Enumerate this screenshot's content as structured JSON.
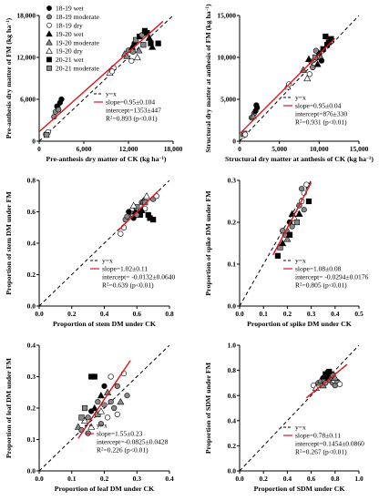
{
  "legend": [
    {
      "label": "18-19 wet",
      "marker": "circle",
      "fill": "#000000"
    },
    {
      "label": "18-19 moderate",
      "marker": "circle",
      "fill": "#888888"
    },
    {
      "label": "18-19 dry",
      "marker": "circle",
      "fill": "#ffffff"
    },
    {
      "label": "19-20 wet",
      "marker": "triangle",
      "fill": "#000000"
    },
    {
      "label": "19-20 moderate",
      "marker": "triangle",
      "fill": "#888888"
    },
    {
      "label": "19-20 dry",
      "marker": "triangle",
      "fill": "#ffffff"
    },
    {
      "label": "20-21 wet",
      "marker": "square",
      "fill": "#000000"
    },
    {
      "label": "20-21 moderate",
      "marker": "square",
      "fill": "#888888"
    }
  ],
  "colors": {
    "fit_line": "#e0141e",
    "one_to_one": "#000000",
    "axis": "#000000"
  },
  "chart_data": [
    {
      "type": "scatter",
      "xlabel": "Pre-anthesis dry matter of CK (kg ha",
      "ylabel": "Pre-anthesis dry matter of FM (kg ha",
      "xlim": [
        0,
        18000
      ],
      "ylim": [
        0,
        18000
      ],
      "xticks": [
        0,
        6000,
        12000,
        18000
      ],
      "xtick_labels": [
        "0",
        "6,000",
        "12,000",
        "18,000"
      ],
      "yticks": [
        0,
        6000,
        12000,
        18000
      ],
      "ytick_labels": [
        "0",
        "6,000",
        "12,000",
        "18,000"
      ],
      "fit": {
        "slope": 0.95,
        "intercept": 1353
      },
      "stats": {
        "one_to_one_label": "y=x",
        "slope": "slope=0.95±0.104",
        "intercept": "intercept=1353±447",
        "r2_prefix": "R",
        "r2_sup": "2",
        "r2_rest": "=0.893 (p<0.01)"
      },
      "points": [
        [
          900,
          1000,
          "18-19 dry"
        ],
        [
          1200,
          1300,
          "18-19 dry"
        ],
        [
          1000,
          900,
          "20-21 moderate"
        ],
        [
          2000,
          3500,
          "18-19 moderate"
        ],
        [
          2200,
          4200,
          "18-19 moderate"
        ],
        [
          2500,
          4800,
          "18-19 moderate"
        ],
        [
          2400,
          5000,
          "18-19 wet"
        ],
        [
          2800,
          5500,
          "18-19 wet"
        ],
        [
          3000,
          6000,
          "18-19 wet"
        ],
        [
          2600,
          4500,
          "18-19 moderate"
        ],
        [
          9500,
          9800,
          "19-20 dry"
        ],
        [
          10000,
          10500,
          "18-19 dry"
        ],
        [
          9800,
          10000,
          "18-19 dry"
        ],
        [
          11500,
          12500,
          "19-20 moderate"
        ],
        [
          12000,
          13000,
          "18-19 moderate"
        ],
        [
          12500,
          13500,
          "19-20 wet"
        ],
        [
          12800,
          14000,
          "18-19 wet"
        ],
        [
          13000,
          14500,
          "20-21 moderate"
        ],
        [
          13500,
          15000,
          "20-21 wet"
        ],
        [
          13200,
          12000,
          "19-20 dry"
        ],
        [
          12400,
          11500,
          "18-19 dry"
        ],
        [
          14000,
          13800,
          "20-21 moderate"
        ],
        [
          14500,
          15500,
          "20-21 wet"
        ],
        [
          15000,
          14000,
          "20-21 wet"
        ],
        [
          15200,
          13500,
          "19-20 wet"
        ],
        [
          13800,
          15200,
          "18-19 moderate"
        ],
        [
          14200,
          15800,
          "20-21 wet"
        ],
        [
          11800,
          12200,
          "19-20 moderate"
        ],
        [
          12600,
          12800,
          "18-19 moderate"
        ],
        [
          13400,
          13000,
          "19-20 moderate"
        ],
        [
          16000,
          14000,
          "20-21 wet"
        ],
        [
          14800,
          14800,
          "19-20 wet"
        ]
      ]
    },
    {
      "type": "scatter",
      "xlabel": "Structural dry matter at anthesis of CK (kg ha",
      "ylabel": "Structural dry matter at anthesis of FM (kg ha",
      "xlim": [
        0,
        15000
      ],
      "ylim": [
        0,
        15000
      ],
      "xticks": [
        0,
        5000,
        10000,
        15000
      ],
      "xtick_labels": [
        "0",
        "5,000",
        "10,000",
        "15,000"
      ],
      "yticks": [
        0,
        5000,
        10000,
        15000
      ],
      "ytick_labels": [
        "0",
        "5,000",
        "10,000",
        "15,000"
      ],
      "fit": {
        "slope": 0.95,
        "intercept": 876
      },
      "stats": {
        "one_to_one_label": "y=x",
        "slope": "slope=0.95±0.04",
        "intercept": "intercept=876±330",
        "r2_prefix": "R",
        "r2_sup": "2",
        "r2_rest": "=0.931 (p<0.01)"
      },
      "points": [
        [
          500,
          700,
          "18-19 dry"
        ],
        [
          600,
          900,
          "20-21 moderate"
        ],
        [
          700,
          800,
          "18-19 dry"
        ],
        [
          1500,
          2800,
          "18-19 moderate"
        ],
        [
          1800,
          3300,
          "18-19 moderate"
        ],
        [
          2000,
          3600,
          "18-19 wet"
        ],
        [
          2200,
          4000,
          "18-19 wet"
        ],
        [
          1700,
          3000,
          "19-20 moderate"
        ],
        [
          2100,
          4300,
          "18-19 wet"
        ],
        [
          6000,
          6500,
          "19-20 dry"
        ],
        [
          6200,
          6800,
          "18-19 dry"
        ],
        [
          8000,
          8500,
          "19-20 moderate"
        ],
        [
          8500,
          7500,
          "19-20 dry"
        ],
        [
          8800,
          8000,
          "18-19 dry"
        ],
        [
          9000,
          9500,
          "18-19 moderate"
        ],
        [
          9500,
          10000,
          "20-21 moderate"
        ],
        [
          10000,
          10500,
          "20-21 wet"
        ],
        [
          10500,
          11000,
          "20-21 wet"
        ],
        [
          11000,
          11500,
          "20-21 wet"
        ],
        [
          10800,
          12500,
          "20-21 wet"
        ],
        [
          9200,
          8800,
          "18-19 moderate"
        ],
        [
          9800,
          9200,
          "19-20 wet"
        ],
        [
          10200,
          10000,
          "19-20 moderate"
        ],
        [
          11200,
          11800,
          "20-21 wet"
        ],
        [
          9600,
          10800,
          "18-19 moderate"
        ],
        [
          8700,
          9800,
          "19-20 wet"
        ],
        [
          11500,
          12200,
          "20-21 wet"
        ],
        [
          10300,
          9600,
          "18-19 wet"
        ]
      ]
    },
    {
      "type": "scatter",
      "xlabel": "Proportion of stem DM under CK",
      "ylabel": "Proportion of stem DM under FM",
      "xlim": [
        0,
        0.8
      ],
      "ylim": [
        0,
        0.8
      ],
      "xticks": [
        0,
        0.2,
        0.4,
        0.6,
        0.8
      ],
      "xtick_labels": [
        "0.0",
        "0.2",
        "0.4",
        "0.6",
        "0.8"
      ],
      "yticks": [
        0,
        0.2,
        0.4,
        0.6,
        0.8
      ],
      "ytick_labels": [
        "0.0",
        "0.2",
        "0.4",
        "0.6",
        "0.8"
      ],
      "fit": {
        "slope": 1.02,
        "intercept": -0.0132
      },
      "stats": {
        "one_to_one_label": "y=x",
        "slope": "slope=1.02±0.11",
        "intercept": "intercept= -0.0132±0.0640",
        "r2_prefix": "R",
        "r2_sup": "2",
        "r2_rest": "=0.639 (p<0.01)"
      },
      "points": [
        [
          0.5,
          0.46,
          "18-19 dry"
        ],
        [
          0.52,
          0.5,
          "18-19 dry"
        ],
        [
          0.53,
          0.55,
          "18-19 moderate"
        ],
        [
          0.55,
          0.58,
          "19-20 moderate"
        ],
        [
          0.56,
          0.6,
          "18-19 moderate"
        ],
        [
          0.57,
          0.62,
          "19-20 dry"
        ],
        [
          0.58,
          0.56,
          "18-19 wet"
        ],
        [
          0.59,
          0.6,
          "19-20 wet"
        ],
        [
          0.6,
          0.63,
          "20-21 moderate"
        ],
        [
          0.61,
          0.59,
          "20-21 wet"
        ],
        [
          0.62,
          0.58,
          "20-21 wet"
        ],
        [
          0.63,
          0.66,
          "18-19 moderate"
        ],
        [
          0.64,
          0.67,
          "19-20 moderate"
        ],
        [
          0.65,
          0.62,
          "18-19 dry"
        ],
        [
          0.66,
          0.7,
          "19-20 dry"
        ],
        [
          0.67,
          0.58,
          "20-21 wet"
        ],
        [
          0.68,
          0.56,
          "20-21 wet"
        ],
        [
          0.7,
          0.55,
          "20-21 wet"
        ],
        [
          0.7,
          0.68,
          "18-19 moderate"
        ],
        [
          0.72,
          0.7,
          "18-19 dry"
        ],
        [
          0.55,
          0.6,
          "18-19 wet"
        ],
        [
          0.58,
          0.64,
          "19-20 dry"
        ],
        [
          0.6,
          0.58,
          "18-19 moderate"
        ],
        [
          0.63,
          0.61,
          "19-20 wet"
        ],
        [
          0.65,
          0.66,
          "20-21 moderate"
        ],
        [
          0.54,
          0.57,
          "18-19 moderate"
        ]
      ]
    },
    {
      "type": "scatter",
      "xlabel": "Proportion of spike DM under CK",
      "ylabel": "Proportion of spike DM under FM",
      "xlim": [
        0,
        0.5
      ],
      "ylim": [
        0,
        0.3
      ],
      "xticks": [
        0,
        0.1,
        0.2,
        0.3,
        0.4,
        0.5
      ],
      "xtick_labels": [
        "0.0",
        "0.1",
        "0.2",
        "0.3",
        "0.4",
        "0.5"
      ],
      "yticks": [
        0,
        0.1,
        0.2,
        0.3
      ],
      "ytick_labels": [
        "0.0",
        "0.1",
        "0.2",
        "0.3"
      ],
      "fit": {
        "slope": 1.08,
        "intercept": -0.0294
      },
      "stats": {
        "one_to_one_label": "y=x",
        "slope": "slope=1.08±0.08",
        "intercept": "intercept= -0.0294±0.0176",
        "r2_prefix": "R",
        "r2_sup": "2",
        "r2_rest": "=0.805 (p<0.01)"
      },
      "points": [
        [
          0.16,
          0.12,
          "20-21 wet"
        ],
        [
          0.17,
          0.14,
          "20-21 moderate"
        ],
        [
          0.18,
          0.15,
          "19-20 wet"
        ],
        [
          0.19,
          0.17,
          "18-19 moderate"
        ],
        [
          0.2,
          0.18,
          "19-20 moderate"
        ],
        [
          0.21,
          0.2,
          "18-19 wet"
        ],
        [
          0.22,
          0.19,
          "18-19 moderate"
        ],
        [
          0.23,
          0.21,
          "19-20 dry"
        ],
        [
          0.24,
          0.22,
          "18-19 dry"
        ],
        [
          0.25,
          0.24,
          "18-19 moderate"
        ],
        [
          0.26,
          0.25,
          "18-19 dry"
        ],
        [
          0.27,
          0.27,
          "18-19 dry"
        ],
        [
          0.28,
          0.29,
          "18-19 dry"
        ],
        [
          0.29,
          0.25,
          "20-21 wet"
        ],
        [
          0.26,
          0.28,
          "18-19 moderate"
        ],
        [
          0.2,
          0.16,
          "19-20 moderate"
        ],
        [
          0.22,
          0.22,
          "19-20 wet"
        ],
        [
          0.24,
          0.2,
          "20-21 moderate"
        ],
        [
          0.18,
          0.18,
          "18-19 moderate"
        ],
        [
          0.27,
          0.23,
          "18-19 moderate"
        ],
        [
          0.21,
          0.17,
          "20-21 wet"
        ],
        [
          0.25,
          0.22,
          "19-20 wet"
        ]
      ]
    },
    {
      "type": "scatter",
      "xlabel": "Proportion of leaf DM under CK",
      "ylabel": "Proportion of leaf DM under FM",
      "xlim": [
        0,
        0.4
      ],
      "ylim": [
        0,
        0.4
      ],
      "xticks": [
        0,
        0.1,
        0.2,
        0.3,
        0.4
      ],
      "xtick_labels": [
        "0.0",
        "0.1",
        "0.2",
        "0.3",
        "0.4"
      ],
      "yticks": [
        0,
        0.1,
        0.2,
        0.3,
        0.4
      ],
      "ytick_labels": [
        "0.0",
        "0.1",
        "0.2",
        "0.3",
        "0.4"
      ],
      "fit": {
        "slope": 1.55,
        "intercept": -0.0825
      },
      "stats": {
        "one_to_one_label": "y=x",
        "slope": "slope=1.55±0.23",
        "intercept": "intercept=-0.0825±0.0428",
        "r2_prefix": "R",
        "r2_sup": "2",
        "r2_rest": "=0.226 (p<0.01)"
      },
      "points": [
        [
          0.12,
          0.14,
          "19-20 moderate"
        ],
        [
          0.13,
          0.13,
          "18-19 moderate"
        ],
        [
          0.14,
          0.16,
          "19-20 dry"
        ],
        [
          0.15,
          0.17,
          "18-19 moderate"
        ],
        [
          0.15,
          0.12,
          "18-19 moderate"
        ],
        [
          0.16,
          0.19,
          "18-19 wet"
        ],
        [
          0.16,
          0.3,
          "20-21 wet"
        ],
        [
          0.17,
          0.3,
          "20-21 wet"
        ],
        [
          0.17,
          0.2,
          "19-20 wet"
        ],
        [
          0.18,
          0.18,
          "20-21 moderate"
        ],
        [
          0.18,
          0.22,
          "18-19 moderate"
        ],
        [
          0.19,
          0.24,
          "19-20 wet"
        ],
        [
          0.19,
          0.15,
          "18-19 moderate"
        ],
        [
          0.2,
          0.27,
          "18-19 wet"
        ],
        [
          0.2,
          0.21,
          "18-19 moderate"
        ],
        [
          0.21,
          0.25,
          "19-20 moderate"
        ],
        [
          0.21,
          0.17,
          "18-19 dry"
        ],
        [
          0.22,
          0.22,
          "18-19 moderate"
        ],
        [
          0.22,
          0.3,
          "18-19 dry"
        ],
        [
          0.23,
          0.2,
          "18-19 moderate"
        ],
        [
          0.24,
          0.27,
          "18-19 moderate"
        ],
        [
          0.24,
          0.18,
          "18-19 dry"
        ],
        [
          0.25,
          0.22,
          "19-20 moderate"
        ],
        [
          0.26,
          0.31,
          "18-19 dry"
        ],
        [
          0.27,
          0.24,
          "18-19 moderate"
        ],
        [
          0.14,
          0.2,
          "20-21 moderate"
        ],
        [
          0.13,
          0.17,
          "20-21 moderate"
        ],
        [
          0.16,
          0.14,
          "19-20 dry"
        ],
        [
          0.19,
          0.19,
          "19-20 dry"
        ]
      ]
    },
    {
      "type": "scatter",
      "xlabel": "Proportion of SDM under CK",
      "ylabel": "Proportion of SDM under FM",
      "xlim": [
        0,
        1.0
      ],
      "ylim": [
        0,
        1.0
      ],
      "xticks": [
        0,
        0.2,
        0.4,
        0.6,
        0.8,
        1.0
      ],
      "xtick_labels": [
        "0.0",
        "0.2",
        "0.4",
        "0.6",
        "0.8",
        "1.0"
      ],
      "yticks": [
        0,
        0.2,
        0.4,
        0.6,
        0.8,
        1.0
      ],
      "ytick_labels": [
        "0.0",
        "0.2",
        "0.4",
        "0.6",
        "0.8",
        "1.0"
      ],
      "fit": {
        "slope": 0.78,
        "intercept": 0.1454
      },
      "stats": {
        "one_to_one_label": "y=x",
        "slope": "slope=0.78±0.11",
        "intercept": "intercept=0.1454±0.0860",
        "r2_prefix": "R",
        "r2_sup": "2",
        "r2_rest": "=0.267 (p<0.01)"
      },
      "points": [
        [
          0.62,
          0.68,
          "18-19 dry"
        ],
        [
          0.64,
          0.66,
          "19-20 dry"
        ],
        [
          0.66,
          0.7,
          "18-19 moderate"
        ],
        [
          0.68,
          0.72,
          "19-20 moderate"
        ],
        [
          0.7,
          0.74,
          "18-19 wet"
        ],
        [
          0.71,
          0.71,
          "20-21 moderate"
        ],
        [
          0.72,
          0.77,
          "20-21 wet"
        ],
        [
          0.73,
          0.75,
          "18-19 wet"
        ],
        [
          0.74,
          0.73,
          "19-20 wet"
        ],
        [
          0.75,
          0.76,
          "20-21 wet"
        ],
        [
          0.76,
          0.72,
          "18-19 moderate"
        ],
        [
          0.77,
          0.74,
          "18-19 moderate"
        ],
        [
          0.78,
          0.7,
          "18-19 moderate"
        ],
        [
          0.79,
          0.72,
          "18-19 dry"
        ],
        [
          0.8,
          0.68,
          "18-19 moderate"
        ],
        [
          0.82,
          0.71,
          "18-19 moderate"
        ],
        [
          0.7,
          0.68,
          "19-20 moderate"
        ],
        [
          0.74,
          0.78,
          "20-21 wet"
        ],
        [
          0.76,
          0.77,
          "20-21 wet"
        ],
        [
          0.78,
          0.76,
          "20-21 moderate"
        ],
        [
          0.72,
          0.7,
          "18-19 moderate"
        ],
        [
          0.8,
          0.74,
          "19-20 moderate"
        ],
        [
          0.84,
          0.69,
          "18-19 dry"
        ],
        [
          0.75,
          0.79,
          "20-21 wet"
        ]
      ]
    }
  ]
}
